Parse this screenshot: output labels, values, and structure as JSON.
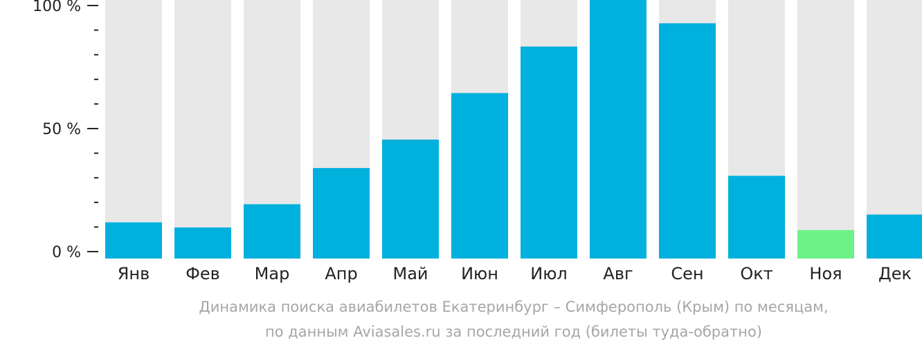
{
  "chart_data": {
    "type": "bar",
    "categories": [
      "Янв",
      "Фев",
      "Мар",
      "Апр",
      "Май",
      "Июн",
      "Июл",
      "Авг",
      "Сен",
      "Окт",
      "Ноя",
      "Дек"
    ],
    "values": [
      14,
      12,
      21,
      35,
      46,
      64,
      82,
      100,
      91,
      32,
      11,
      17
    ],
    "ylim": [
      0,
      100
    ],
    "yticks": [
      {
        "value": 0,
        "label": "0 %"
      },
      {
        "value": 50,
        "label": "50 %"
      },
      {
        "value": 100,
        "label": "100 %"
      }
    ],
    "minor_tick_step": 10,
    "highlight_index": 10,
    "colors": {
      "bar": "#00b0dd",
      "highlight": "#6cf286",
      "background_bar": "#e8e8e8",
      "axis": "#222222",
      "caption": "#a6a6a6"
    },
    "caption_lines": [
      "Динамика поиска авиабилетов Екатеринбург – Симферополь (Крым) по месяцам,",
      "по данным Aviasales.ru за последний год (билеты туда-обратно)"
    ]
  }
}
